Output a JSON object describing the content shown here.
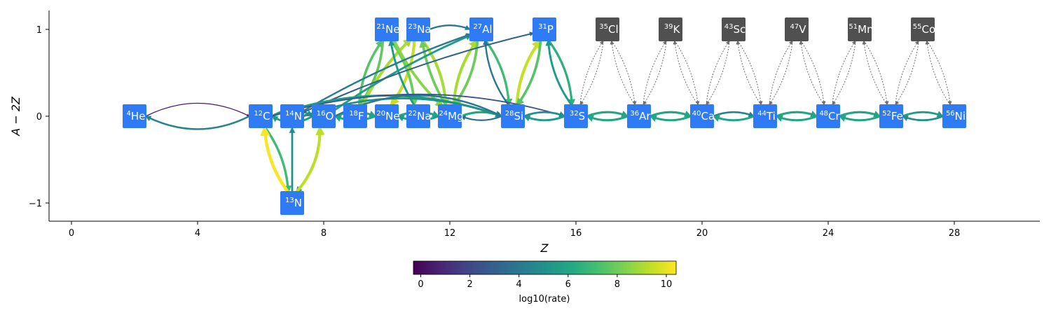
{
  "chart_data": {
    "type": "scatter",
    "xlabel": "Z",
    "ylabel": "A − 2Z",
    "xlim": [
      -0.7,
      30.8
    ],
    "ylim": [
      -1.2,
      1.2
    ],
    "xticks": [
      0,
      4,
      8,
      12,
      16,
      20,
      24,
      28
    ],
    "yticks": [
      1,
      0,
      -1
    ],
    "ytick_labels": [
      "1",
      "0",
      "−1"
    ],
    "colorbar": {
      "label": "log10(rate)",
      "colormap": "viridis",
      "range": [
        -0.3,
        10.4
      ],
      "ticks": [
        0,
        2,
        4,
        6,
        8,
        10
      ]
    },
    "node_colors": {
      "active": "#2f7bf5",
      "inactive": "#505050"
    },
    "nodes": [
      {
        "mass": "4",
        "sym": "He",
        "z": 2,
        "n": 0,
        "active": true
      },
      {
        "mass": "12",
        "sym": "C",
        "z": 6,
        "n": 0,
        "active": true
      },
      {
        "mass": "14",
        "sym": "N",
        "z": 7,
        "n": 0,
        "active": true
      },
      {
        "mass": "13",
        "sym": "N",
        "z": 7,
        "n": -1,
        "active": true
      },
      {
        "mass": "16",
        "sym": "O",
        "z": 8,
        "n": 0,
        "active": true
      },
      {
        "mass": "18",
        "sym": "F",
        "z": 9,
        "n": 0,
        "active": true
      },
      {
        "mass": "20",
        "sym": "Ne",
        "z": 10,
        "n": 0,
        "active": true
      },
      {
        "mass": "21",
        "sym": "Ne",
        "z": 10,
        "n": 1,
        "active": true
      },
      {
        "mass": "22",
        "sym": "Na",
        "z": 11,
        "n": 0,
        "active": true
      },
      {
        "mass": "23",
        "sym": "Na",
        "z": 11,
        "n": 1,
        "active": true
      },
      {
        "mass": "24",
        "sym": "Mg",
        "z": 12,
        "n": 0,
        "active": true
      },
      {
        "mass": "27",
        "sym": "Al",
        "z": 13,
        "n": 1,
        "active": true
      },
      {
        "mass": "28",
        "sym": "Si",
        "z": 14,
        "n": 0,
        "active": true
      },
      {
        "mass": "31",
        "sym": "P",
        "z": 15,
        "n": 1,
        "active": true
      },
      {
        "mass": "32",
        "sym": "S",
        "z": 16,
        "n": 0,
        "active": true
      },
      {
        "mass": "35",
        "sym": "Cl",
        "z": 17,
        "n": 1,
        "active": false
      },
      {
        "mass": "36",
        "sym": "Ar",
        "z": 18,
        "n": 0,
        "active": true
      },
      {
        "mass": "39",
        "sym": "K",
        "z": 19,
        "n": 1,
        "active": false
      },
      {
        "mass": "40",
        "sym": "Ca",
        "z": 20,
        "n": 0,
        "active": true
      },
      {
        "mass": "43",
        "sym": "Sc",
        "z": 21,
        "n": 1,
        "active": false
      },
      {
        "mass": "44",
        "sym": "Ti",
        "z": 22,
        "n": 0,
        "active": true
      },
      {
        "mass": "47",
        "sym": "V",
        "z": 23,
        "n": 1,
        "active": false
      },
      {
        "mass": "48",
        "sym": "Cr",
        "z": 24,
        "n": 0,
        "active": true
      },
      {
        "mass": "51",
        "sym": "Mn",
        "z": 25,
        "n": 1,
        "active": false
      },
      {
        "mass": "52",
        "sym": "Fe",
        "z": 26,
        "n": 0,
        "active": true
      },
      {
        "mass": "55",
        "sym": "Co",
        "z": 27,
        "n": 1,
        "active": false
      },
      {
        "mass": "56",
        "sym": "Ni",
        "z": 28,
        "n": 0,
        "active": true
      }
    ],
    "edges": [
      {
        "from": [
          2,
          0
        ],
        "to": [
          6,
          0
        ],
        "rate": 0.5,
        "bend": 0.25
      },
      {
        "from": [
          6,
          0
        ],
        "to": [
          2,
          0
        ],
        "rate": 4.5,
        "bend": 0.25
      },
      {
        "from": [
          6,
          0
        ],
        "to": [
          7,
          -1
        ],
        "rate": 7,
        "bend": 0.15
      },
      {
        "from": [
          7,
          -1
        ],
        "to": [
          6,
          0
        ],
        "rate": 10.3,
        "bend": 0.15
      },
      {
        "from": [
          7,
          -1
        ],
        "to": [
          7,
          0
        ],
        "rate": 5,
        "bend": 0
      },
      {
        "from": [
          7,
          0
        ],
        "to": [
          8,
          0
        ],
        "rate": 6,
        "bend": 0.3
      },
      {
        "from": [
          8,
          0
        ],
        "to": [
          7,
          -1
        ],
        "rate": 5.5,
        "bend": 0.2
      },
      {
        "from": [
          7,
          -1
        ],
        "to": [
          8,
          0
        ],
        "rate": 9.3,
        "bend": -0.2
      },
      {
        "from": [
          8,
          0
        ],
        "to": [
          6,
          0
        ],
        "rate": 5.5,
        "bend": 0.3
      },
      {
        "from": [
          6,
          0
        ],
        "to": [
          8,
          0
        ],
        "rate": 5,
        "bend": 0.3
      },
      {
        "from": [
          8,
          0
        ],
        "to": [
          10,
          0
        ],
        "rate": 6,
        "bend": 0.2
      },
      {
        "from": [
          10,
          0
        ],
        "to": [
          8,
          0
        ],
        "rate": 6,
        "bend": 0.2
      },
      {
        "from": [
          10,
          0
        ],
        "to": [
          12,
          0
        ],
        "rate": 6,
        "bend": 0.2
      },
      {
        "from": [
          12,
          0
        ],
        "to": [
          10,
          0
        ],
        "rate": 5.5,
        "bend": 0.2
      },
      {
        "from": [
          9,
          0
        ],
        "to": [
          10,
          1
        ],
        "rate": 7.5,
        "bend": 0.15
      },
      {
        "from": [
          10,
          1
        ],
        "to": [
          9,
          0
        ],
        "rate": 7.8,
        "bend": 0.15
      },
      {
        "from": [
          9,
          0
        ],
        "to": [
          11,
          1
        ],
        "rate": 9,
        "bend": 0.1
      },
      {
        "from": [
          11,
          1
        ],
        "to": [
          10,
          0
        ],
        "rate": 9.5,
        "bend": 0.15
      },
      {
        "from": [
          10,
          1
        ],
        "to": [
          11,
          0
        ],
        "rate": 8,
        "bend": 0.15
      },
      {
        "from": [
          10,
          1
        ],
        "to": [
          12,
          0
        ],
        "rate": 8.5,
        "bend": -0.1
      },
      {
        "from": [
          11,
          1
        ],
        "to": [
          12,
          0
        ],
        "rate": 9,
        "bend": 0.15
      },
      {
        "from": [
          11,
          1
        ],
        "to": [
          13,
          1
        ],
        "rate": 4,
        "bend": 0.2
      },
      {
        "from": [
          11,
          0
        ],
        "to": [
          10,
          1
        ],
        "rate": 5.5,
        "bend": 0.1
      },
      {
        "from": [
          12,
          0
        ],
        "to": [
          11,
          1
        ],
        "rate": 8,
        "bend": 0.1
      },
      {
        "from": [
          12,
          0
        ],
        "to": [
          13,
          1
        ],
        "rate": 9,
        "bend": 0.15
      },
      {
        "from": [
          13,
          1
        ],
        "to": [
          12,
          0
        ],
        "rate": 8,
        "bend": 0.15
      },
      {
        "from": [
          13,
          1
        ],
        "to": [
          14,
          0
        ],
        "rate": 7,
        "bend": 0.15
      },
      {
        "from": [
          14,
          0
        ],
        "to": [
          13,
          1
        ],
        "rate": 4,
        "bend": 0.15
      },
      {
        "from": [
          14,
          0
        ],
        "to": [
          15,
          1
        ],
        "rate": 9.5,
        "bend": 0.15
      },
      {
        "from": [
          15,
          1
        ],
        "to": [
          14,
          0
        ],
        "rate": 7.5,
        "bend": 0.15
      },
      {
        "from": [
          15,
          1
        ],
        "to": [
          16,
          0
        ],
        "rate": 6.5,
        "bend": 0.15
      },
      {
        "from": [
          16,
          0
        ],
        "to": [
          15,
          1
        ],
        "rate": 5.5,
        "bend": 0.15
      },
      {
        "from": [
          8,
          0
        ],
        "to": [
          13,
          1
        ],
        "rate": 5.5,
        "bend": 0.05
      },
      {
        "from": [
          7,
          0
        ],
        "to": [
          13,
          1
        ],
        "rate": 4.2,
        "bend": 0.05
      },
      {
        "from": [
          7,
          0
        ],
        "to": [
          15,
          1
        ],
        "rate": 3,
        "bend": 0.05
      },
      {
        "from": [
          12,
          0
        ],
        "to": [
          14,
          0
        ],
        "rate": 6,
        "bend": 0.2
      },
      {
        "from": [
          14,
          0
        ],
        "to": [
          12,
          0
        ],
        "rate": 3.5,
        "bend": 0.2
      },
      {
        "from": [
          6,
          0
        ],
        "to": [
          14,
          0
        ],
        "rate": 5.5,
        "bend": 0.18
      },
      {
        "from": [
          7,
          0
        ],
        "to": [
          14,
          0
        ],
        "rate": 5,
        "bend": 0.18
      },
      {
        "from": [
          8,
          0
        ],
        "to": [
          14,
          0
        ],
        "rate": 4,
        "bend": 0.25
      },
      {
        "from": [
          6,
          0
        ],
        "to": [
          16,
          0
        ],
        "rate": 2.5,
        "bend": 0.15
      },
      {
        "from": [
          14,
          0
        ],
        "to": [
          16,
          0
        ],
        "rate": 5,
        "bend": 0.2
      },
      {
        "from": [
          16,
          0
        ],
        "to": [
          14,
          0
        ],
        "rate": 5.5,
        "bend": 0.2
      },
      {
        "from": [
          16,
          0
        ],
        "to": [
          18,
          0
        ],
        "rate": 6,
        "bend": 0.2
      },
      {
        "from": [
          18,
          0
        ],
        "to": [
          16,
          0
        ],
        "rate": 6,
        "bend": 0.2
      },
      {
        "from": [
          18,
          0
        ],
        "to": [
          20,
          0
        ],
        "rate": 6,
        "bend": 0.2
      },
      {
        "from": [
          20,
          0
        ],
        "to": [
          18,
          0
        ],
        "rate": 6,
        "bend": 0.2
      },
      {
        "from": [
          20,
          0
        ],
        "to": [
          22,
          0
        ],
        "rate": 4.5,
        "bend": 0.2
      },
      {
        "from": [
          22,
          0
        ],
        "to": [
          20,
          0
        ],
        "rate": 6,
        "bend": 0.2
      },
      {
        "from": [
          22,
          0
        ],
        "to": [
          24,
          0
        ],
        "rate": 6,
        "bend": 0.2
      },
      {
        "from": [
          24,
          0
        ],
        "to": [
          22,
          0
        ],
        "rate": 6,
        "bend": 0.2
      },
      {
        "from": [
          24,
          0
        ],
        "to": [
          26,
          0
        ],
        "rate": 6,
        "bend": 0.2
      },
      {
        "from": [
          26,
          0
        ],
        "to": [
          24,
          0
        ],
        "rate": 6,
        "bend": 0.2
      },
      {
        "from": [
          26,
          0
        ],
        "to": [
          28,
          0
        ],
        "rate": 5.5,
        "bend": 0.2
      },
      {
        "from": [
          28,
          0
        ],
        "to": [
          26,
          0
        ],
        "rate": 5,
        "bend": 0.2
      }
    ],
    "inactive_links": [
      [
        16,
        17
      ],
      [
        17,
        18
      ],
      [
        18,
        19
      ],
      [
        19,
        20
      ],
      [
        20,
        21
      ],
      [
        21,
        22
      ],
      [
        22,
        23
      ],
      [
        23,
        24
      ],
      [
        24,
        25
      ],
      [
        25,
        26
      ],
      [
        26,
        27
      ],
      [
        27,
        28
      ]
    ]
  }
}
